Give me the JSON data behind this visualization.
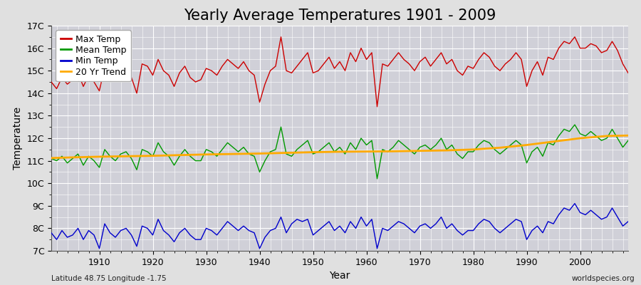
{
  "title": "Yearly Average Temperatures 1901 - 2009",
  "xlabel": "Year",
  "ylabel": "Temperature",
  "subtitle_left": "Latitude 48.75 Longitude -1.75",
  "subtitle_right": "worldspecies.org",
  "years": [
    1901,
    1902,
    1903,
    1904,
    1905,
    1906,
    1907,
    1908,
    1909,
    1910,
    1911,
    1912,
    1913,
    1914,
    1915,
    1916,
    1917,
    1918,
    1919,
    1920,
    1921,
    1922,
    1923,
    1924,
    1925,
    1926,
    1927,
    1928,
    1929,
    1930,
    1931,
    1932,
    1933,
    1934,
    1935,
    1936,
    1937,
    1938,
    1939,
    1940,
    1941,
    1942,
    1943,
    1944,
    1945,
    1946,
    1947,
    1948,
    1949,
    1950,
    1951,
    1952,
    1953,
    1954,
    1955,
    1956,
    1957,
    1958,
    1959,
    1960,
    1961,
    1962,
    1963,
    1964,
    1965,
    1966,
    1967,
    1968,
    1969,
    1970,
    1971,
    1972,
    1973,
    1974,
    1975,
    1976,
    1977,
    1978,
    1979,
    1980,
    1981,
    1982,
    1983,
    1984,
    1985,
    1986,
    1987,
    1988,
    1989,
    1990,
    1991,
    1992,
    1993,
    1994,
    1995,
    1996,
    1997,
    1998,
    1999,
    2000,
    2001,
    2002,
    2003,
    2004,
    2005,
    2006,
    2007,
    2008,
    2009
  ],
  "max_temp": [
    14.5,
    14.2,
    14.7,
    14.4,
    14.6,
    14.9,
    14.3,
    14.8,
    14.5,
    14.1,
    15.2,
    14.8,
    14.6,
    14.9,
    15.1,
    14.7,
    14.0,
    15.3,
    15.2,
    14.8,
    15.5,
    15.0,
    14.8,
    14.3,
    14.9,
    15.2,
    14.7,
    14.5,
    14.6,
    15.1,
    15.0,
    14.8,
    15.2,
    15.5,
    15.3,
    15.1,
    15.4,
    15.0,
    14.8,
    13.6,
    14.4,
    15.0,
    15.2,
    16.5,
    15.0,
    14.9,
    15.2,
    15.5,
    15.8,
    14.9,
    15.0,
    15.3,
    15.6,
    15.1,
    15.4,
    15.0,
    15.8,
    15.4,
    16.0,
    15.5,
    15.8,
    13.4,
    15.3,
    15.2,
    15.5,
    15.8,
    15.5,
    15.3,
    15.0,
    15.4,
    15.6,
    15.2,
    15.5,
    15.8,
    15.3,
    15.5,
    15.0,
    14.8,
    15.2,
    15.1,
    15.5,
    15.8,
    15.6,
    15.2,
    15.0,
    15.3,
    15.5,
    15.8,
    15.5,
    14.3,
    15.0,
    15.4,
    14.8,
    15.6,
    15.5,
    16.0,
    16.3,
    16.2,
    16.5,
    16.0,
    16.0,
    16.2,
    16.1,
    15.8,
    15.9,
    16.3,
    15.9,
    15.3,
    14.9
  ],
  "mean_temp": [
    11.1,
    11.0,
    11.2,
    10.9,
    11.1,
    11.3,
    10.8,
    11.2,
    11.0,
    10.7,
    11.5,
    11.2,
    11.0,
    11.3,
    11.4,
    11.1,
    10.6,
    11.5,
    11.4,
    11.2,
    11.8,
    11.4,
    11.2,
    10.8,
    11.2,
    11.5,
    11.2,
    11.0,
    11.0,
    11.5,
    11.4,
    11.2,
    11.5,
    11.8,
    11.6,
    11.4,
    11.6,
    11.3,
    11.2,
    10.5,
    11.0,
    11.4,
    11.5,
    12.5,
    11.3,
    11.2,
    11.5,
    11.7,
    11.9,
    11.3,
    11.4,
    11.6,
    11.8,
    11.4,
    11.6,
    11.3,
    11.8,
    11.5,
    12.0,
    11.7,
    11.9,
    10.2,
    11.5,
    11.4,
    11.6,
    11.9,
    11.7,
    11.5,
    11.3,
    11.6,
    11.7,
    11.5,
    11.7,
    12.0,
    11.5,
    11.7,
    11.3,
    11.1,
    11.4,
    11.4,
    11.7,
    11.9,
    11.8,
    11.5,
    11.3,
    11.5,
    11.7,
    11.9,
    11.7,
    10.9,
    11.4,
    11.6,
    11.2,
    11.8,
    11.7,
    12.1,
    12.4,
    12.3,
    12.6,
    12.2,
    12.1,
    12.3,
    12.1,
    11.9,
    12.0,
    12.4,
    12.0,
    11.6,
    11.9
  ],
  "min_temp": [
    7.8,
    7.5,
    7.9,
    7.6,
    7.7,
    8.0,
    7.5,
    7.9,
    7.7,
    7.1,
    8.2,
    7.8,
    7.6,
    7.9,
    8.0,
    7.7,
    7.2,
    8.1,
    8.0,
    7.7,
    8.4,
    7.9,
    7.7,
    7.4,
    7.8,
    8.0,
    7.7,
    7.5,
    7.5,
    8.0,
    7.9,
    7.7,
    8.0,
    8.3,
    8.1,
    7.9,
    8.1,
    7.9,
    7.8,
    7.1,
    7.6,
    7.9,
    8.0,
    8.5,
    7.8,
    8.2,
    8.4,
    8.3,
    8.4,
    7.7,
    7.9,
    8.1,
    8.3,
    7.9,
    8.1,
    7.8,
    8.3,
    8.0,
    8.5,
    8.1,
    8.4,
    7.1,
    8.0,
    7.9,
    8.1,
    8.3,
    8.2,
    8.0,
    7.8,
    8.1,
    8.2,
    8.0,
    8.2,
    8.5,
    8.0,
    8.2,
    7.9,
    7.7,
    7.9,
    7.9,
    8.2,
    8.4,
    8.3,
    8.0,
    7.8,
    8.0,
    8.2,
    8.4,
    8.3,
    7.5,
    7.9,
    8.1,
    7.8,
    8.3,
    8.2,
    8.6,
    8.9,
    8.8,
    9.1,
    8.7,
    8.6,
    8.8,
    8.6,
    8.4,
    8.5,
    8.9,
    8.5,
    8.1,
    8.3
  ],
  "trend_years": [
    1901,
    1905,
    1910,
    1915,
    1920,
    1925,
    1930,
    1935,
    1940,
    1945,
    1950,
    1955,
    1960,
    1965,
    1970,
    1975,
    1980,
    1985,
    1990,
    1995,
    2000,
    2005,
    2009
  ],
  "trend_values": [
    11.12,
    11.15,
    11.18,
    11.2,
    11.22,
    11.25,
    11.28,
    11.3,
    11.32,
    11.35,
    11.38,
    11.4,
    11.41,
    11.42,
    11.44,
    11.46,
    11.5,
    11.58,
    11.7,
    11.85,
    12.0,
    12.1,
    12.12
  ],
  "max_color": "#cc0000",
  "mean_color": "#009900",
  "min_color": "#0000cc",
  "trend_color": "#ffaa00",
  "bg_color": "#e0e0e0",
  "plot_bg_color": "#d0d0d8",
  "grid_color": "#ffffff",
  "ylim": [
    7.0,
    17.0
  ],
  "yticks": [
    7,
    8,
    9,
    10,
    11,
    12,
    13,
    14,
    15,
    16,
    17
  ],
  "ytick_labels": [
    "7C",
    "8C",
    "9C",
    "10C",
    "11C",
    "12C",
    "13C",
    "14C",
    "15C",
    "16C",
    "17C"
  ],
  "xlim": [
    1901,
    2009
  ],
  "xticks": [
    1910,
    1920,
    1930,
    1940,
    1950,
    1960,
    1970,
    1980,
    1990,
    2000
  ],
  "title_fontsize": 15,
  "axis_label_fontsize": 10,
  "tick_fontsize": 9,
  "legend_fontsize": 9,
  "linewidth": 1.0,
  "trend_linewidth": 2.0
}
